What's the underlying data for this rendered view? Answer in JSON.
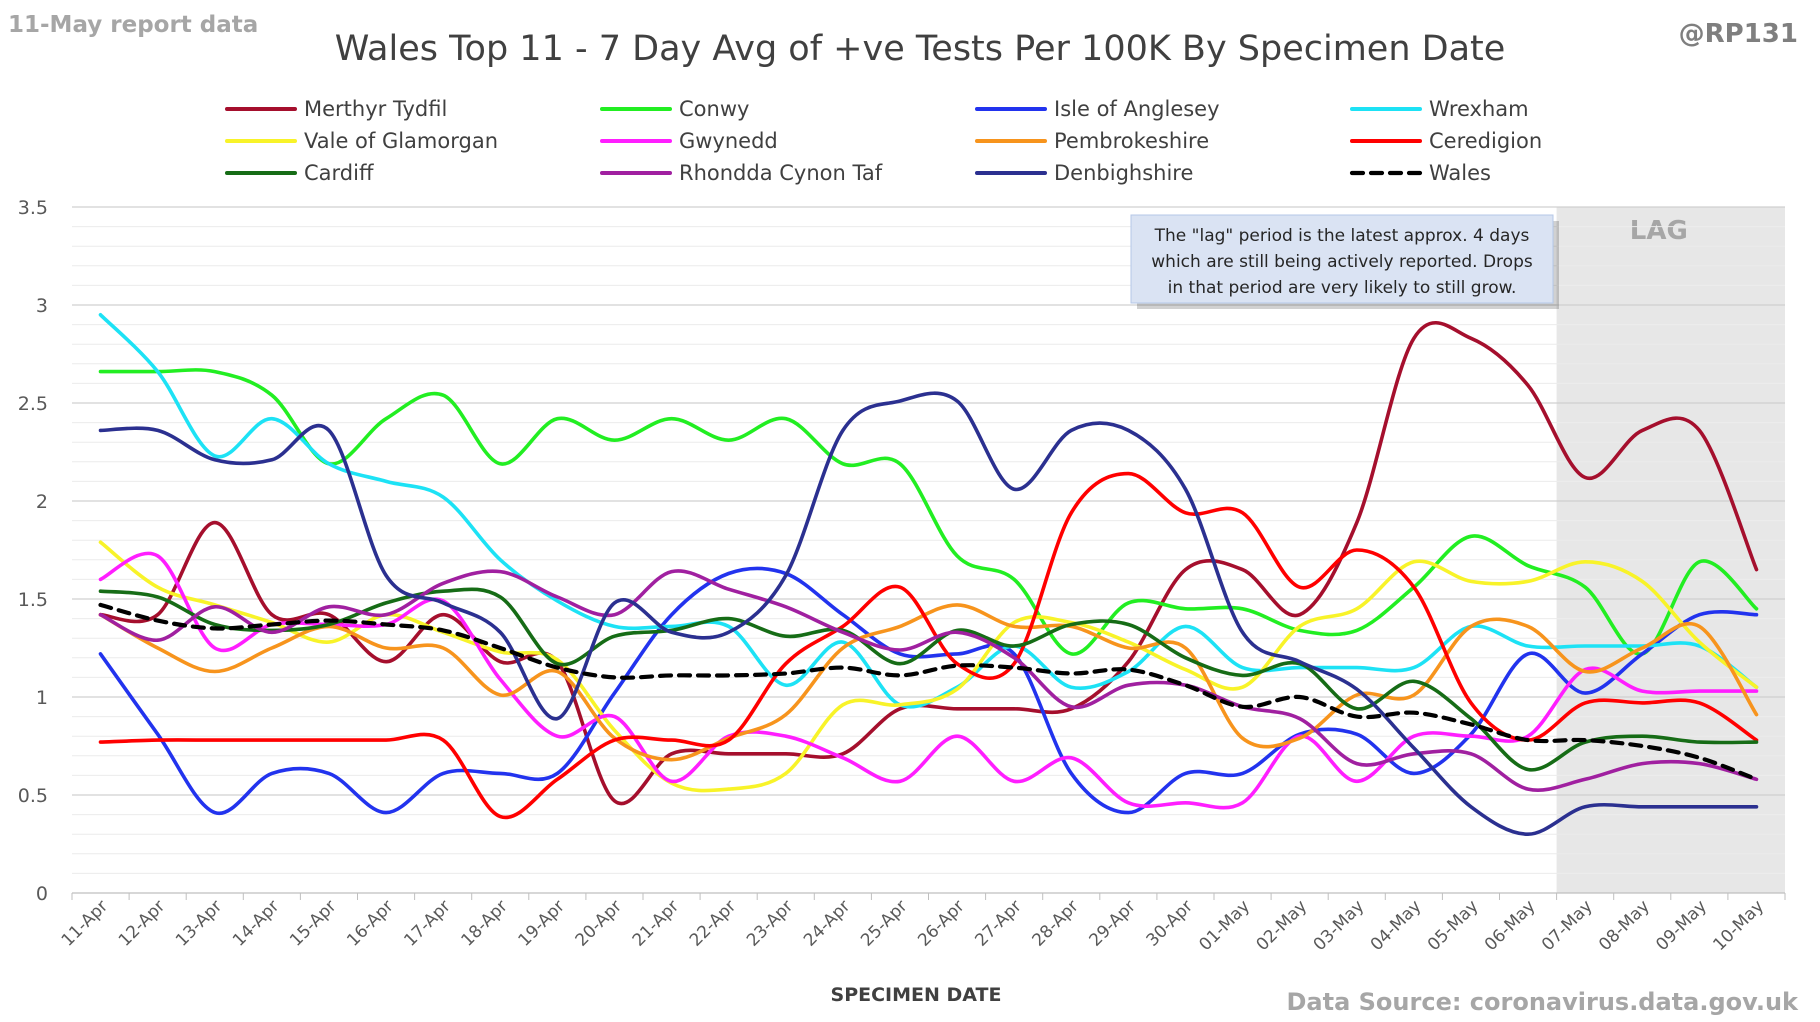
{
  "report_label": "11-May report data",
  "handle": "@RP131",
  "source": "Data Source: coronavirus.data.gov.uk",
  "lag_label": "LAG",
  "note_lines": [
    "The \"lag\" period is the latest approx. 4 days",
    "which are still being actively reported.  Drops",
    "in that period are very likely to still grow."
  ],
  "chart_data": {
    "type": "line",
    "title": "Wales Top 11 - 7 Day Avg of +ve Tests Per 100K By Specimen Date",
    "xlabel": "SPECIMEN DATE",
    "ylabel": "",
    "ylim": [
      0,
      3.5
    ],
    "yticks": [
      "0",
      "0.5",
      "1",
      "1.5",
      "2",
      "2.5",
      "3",
      "3.5"
    ],
    "grid": true,
    "legend_position": "top",
    "lag_start": "07-May",
    "categories": [
      "11-Apr",
      "12-Apr",
      "13-Apr",
      "14-Apr",
      "15-Apr",
      "16-Apr",
      "17-Apr",
      "18-Apr",
      "19-Apr",
      "20-Apr",
      "21-Apr",
      "22-Apr",
      "23-Apr",
      "24-Apr",
      "25-Apr",
      "26-Apr",
      "27-Apr",
      "28-Apr",
      "29-Apr",
      "30-Apr",
      "01-May",
      "02-May",
      "03-May",
      "04-May",
      "05-May",
      "06-May",
      "07-May",
      "08-May",
      "09-May",
      "10-May"
    ],
    "series": [
      {
        "name": "Merthyr Tydfil",
        "color": "#a50f2d",
        "dash": false,
        "values": [
          1.42,
          1.42,
          1.89,
          1.42,
          1.42,
          1.18,
          1.42,
          1.18,
          1.18,
          0.47,
          0.71,
          0.71,
          0.71,
          0.71,
          0.94,
          0.94,
          0.94,
          0.94,
          1.18,
          1.65,
          1.65,
          1.42,
          1.89,
          2.83,
          2.83,
          2.59,
          2.12,
          2.36,
          2.36,
          1.65
        ]
      },
      {
        "name": "Conwy",
        "color": "#22ee22",
        "dash": false,
        "values": [
          2.66,
          2.66,
          2.66,
          2.54,
          2.19,
          2.42,
          2.54,
          2.19,
          2.42,
          2.31,
          2.42,
          2.31,
          2.42,
          2.19,
          2.19,
          1.72,
          1.6,
          1.22,
          1.48,
          1.45,
          1.45,
          1.34,
          1.34,
          1.56,
          1.82,
          1.67,
          1.56,
          1.22,
          1.69,
          1.45
        ]
      },
      {
        "name": "Isle of Anglesey",
        "color": "#2233ee",
        "dash": false,
        "values": [
          1.22,
          0.81,
          0.41,
          0.61,
          0.61,
          0.41,
          0.61,
          0.61,
          0.61,
          1.02,
          1.42,
          1.63,
          1.63,
          1.42,
          1.22,
          1.22,
          1.22,
          0.61,
          0.41,
          0.61,
          0.61,
          0.81,
          0.81,
          0.61,
          0.81,
          1.22,
          1.02,
          1.22,
          1.42,
          1.42
        ]
      },
      {
        "name": "Wrexham",
        "color": "#1de2f5",
        "dash": false,
        "values": [
          2.95,
          2.66,
          2.23,
          2.42,
          2.19,
          2.1,
          2.02,
          1.7,
          1.49,
          1.36,
          1.36,
          1.36,
          1.06,
          1.28,
          0.96,
          1.05,
          1.26,
          1.05,
          1.13,
          1.36,
          1.15,
          1.15,
          1.15,
          1.15,
          1.36,
          1.26,
          1.26,
          1.26,
          1.26,
          1.05
        ]
      },
      {
        "name": "Vale of Glamorgan",
        "color": "#f8f329",
        "dash": false,
        "values": [
          1.79,
          1.56,
          1.47,
          1.38,
          1.28,
          1.42,
          1.33,
          1.23,
          1.19,
          0.83,
          0.56,
          0.53,
          0.61,
          0.96,
          0.96,
          1.04,
          1.38,
          1.38,
          1.28,
          1.14,
          1.05,
          1.36,
          1.45,
          1.69,
          1.59,
          1.59,
          1.69,
          1.59,
          1.28,
          1.05
        ]
      },
      {
        "name": "Gwynedd",
        "color": "#ff1eff",
        "dash": false,
        "values": [
          1.6,
          1.72,
          1.25,
          1.37,
          1.37,
          1.37,
          1.49,
          1.09,
          0.8,
          0.9,
          0.57,
          0.8,
          0.8,
          0.69,
          0.57,
          0.8,
          0.57,
          0.69,
          0.46,
          0.46,
          0.46,
          0.8,
          0.57,
          0.8,
          0.8,
          0.8,
          1.14,
          1.03,
          1.03,
          1.03
        ]
      },
      {
        "name": "Pembrokeshire",
        "color": "#f7941d",
        "dash": false,
        "values": [
          1.42,
          1.25,
          1.13,
          1.25,
          1.36,
          1.25,
          1.25,
          1.01,
          1.13,
          0.79,
          0.68,
          0.79,
          0.91,
          1.25,
          1.36,
          1.47,
          1.36,
          1.36,
          1.25,
          1.25,
          0.79,
          0.79,
          1.01,
          1.01,
          1.36,
          1.36,
          1.13,
          1.25,
          1.36,
          0.91
        ]
      },
      {
        "name": "Ceredigion",
        "color": "#ff0000",
        "dash": false,
        "values": [
          0.77,
          0.78,
          0.78,
          0.78,
          0.78,
          0.78,
          0.78,
          0.39,
          0.58,
          0.78,
          0.78,
          0.78,
          1.17,
          1.36,
          1.56,
          1.17,
          1.17,
          1.94,
          2.14,
          1.94,
          1.94,
          1.56,
          1.75,
          1.56,
          0.97,
          0.78,
          0.97,
          0.97,
          0.97,
          0.78
        ]
      },
      {
        "name": "Cardiff",
        "color": "#166c16",
        "dash": false,
        "values": [
          1.54,
          1.51,
          1.37,
          1.34,
          1.37,
          1.48,
          1.54,
          1.51,
          1.17,
          1.31,
          1.34,
          1.4,
          1.31,
          1.34,
          1.17,
          1.34,
          1.26,
          1.37,
          1.37,
          1.2,
          1.11,
          1.17,
          0.94,
          1.08,
          0.89,
          0.63,
          0.77,
          0.8,
          0.77,
          0.77
        ]
      },
      {
        "name": "Rhondda Cynon Taf",
        "color": "#a020a0",
        "dash": false,
        "values": [
          1.42,
          1.29,
          1.46,
          1.33,
          1.46,
          1.42,
          1.58,
          1.64,
          1.51,
          1.42,
          1.64,
          1.55,
          1.46,
          1.33,
          1.24,
          1.33,
          1.2,
          0.95,
          1.06,
          1.06,
          0.95,
          0.89,
          0.66,
          0.71,
          0.71,
          0.53,
          0.58,
          0.66,
          0.66,
          0.58
        ]
      },
      {
        "name": "Denbighshire",
        "color": "#2b3090",
        "dash": false,
        "values": [
          2.36,
          2.36,
          2.21,
          2.21,
          2.36,
          1.62,
          1.48,
          1.33,
          0.89,
          1.48,
          1.33,
          1.33,
          1.62,
          2.36,
          2.51,
          2.51,
          2.06,
          2.36,
          2.36,
          2.06,
          1.33,
          1.18,
          1.04,
          0.74,
          0.44,
          0.3,
          0.44,
          0.44,
          0.44,
          0.44
        ]
      },
      {
        "name": "Wales",
        "color": "#000000",
        "dash": true,
        "values": [
          1.47,
          1.39,
          1.35,
          1.37,
          1.39,
          1.37,
          1.34,
          1.25,
          1.15,
          1.1,
          1.11,
          1.11,
          1.12,
          1.15,
          1.11,
          1.16,
          1.15,
          1.12,
          1.14,
          1.06,
          0.95,
          1.0,
          0.9,
          0.92,
          0.86,
          0.78,
          0.78,
          0.75,
          0.69,
          0.58
        ]
      }
    ]
  }
}
